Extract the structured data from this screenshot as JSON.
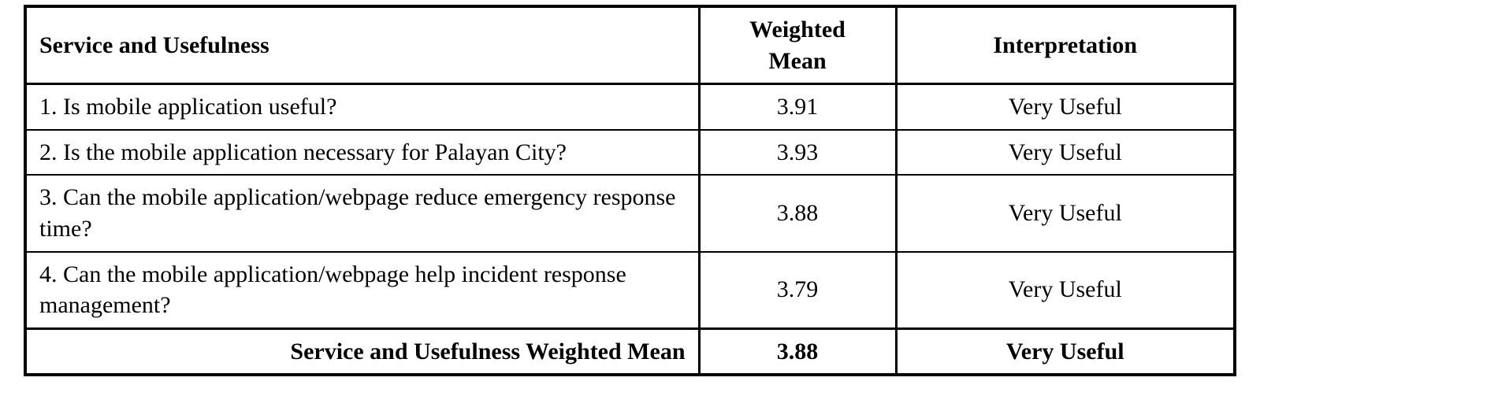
{
  "table": {
    "headers": {
      "question": "Service and Usefulness",
      "weighted_mean": "Weighted\nMean",
      "interpretation": "Interpretation"
    },
    "rows": [
      {
        "question": "1. Is mobile application useful?",
        "weighted_mean": "3.91",
        "interpretation": "Very Useful"
      },
      {
        "question": "2. Is the mobile application necessary for Palayan City?",
        "weighted_mean": "3.93",
        "interpretation": "Very Useful"
      },
      {
        "question": "3. Can the mobile application/webpage reduce emergency response time?",
        "weighted_mean": "3.88",
        "interpretation": "Very Useful"
      },
      {
        "question": "4. Can the mobile application/webpage help incident response management?",
        "weighted_mean": "3.79",
        "interpretation": "Very Useful"
      }
    ],
    "footer": {
      "label": "Service and Usefulness Weighted Mean",
      "weighted_mean": "3.88",
      "interpretation": "Very Useful"
    }
  },
  "chart_data": {
    "type": "table",
    "title": "Service and Usefulness",
    "columns": [
      "Service and Usefulness",
      "Weighted Mean",
      "Interpretation"
    ],
    "data_rows": [
      [
        "1. Is mobile application useful?",
        3.91,
        "Very Useful"
      ],
      [
        "2. Is the mobile application necessary for Palayan City?",
        3.93,
        "Very Useful"
      ],
      [
        "3. Can the mobile application/webpage reduce emergency response time?",
        3.88,
        "Very Useful"
      ],
      [
        "4. Can the mobile application/webpage help incident response management?",
        3.79,
        "Very Useful"
      ]
    ],
    "summary_row": [
      "Service and Usefulness Weighted Mean",
      3.88,
      "Very Useful"
    ]
  }
}
